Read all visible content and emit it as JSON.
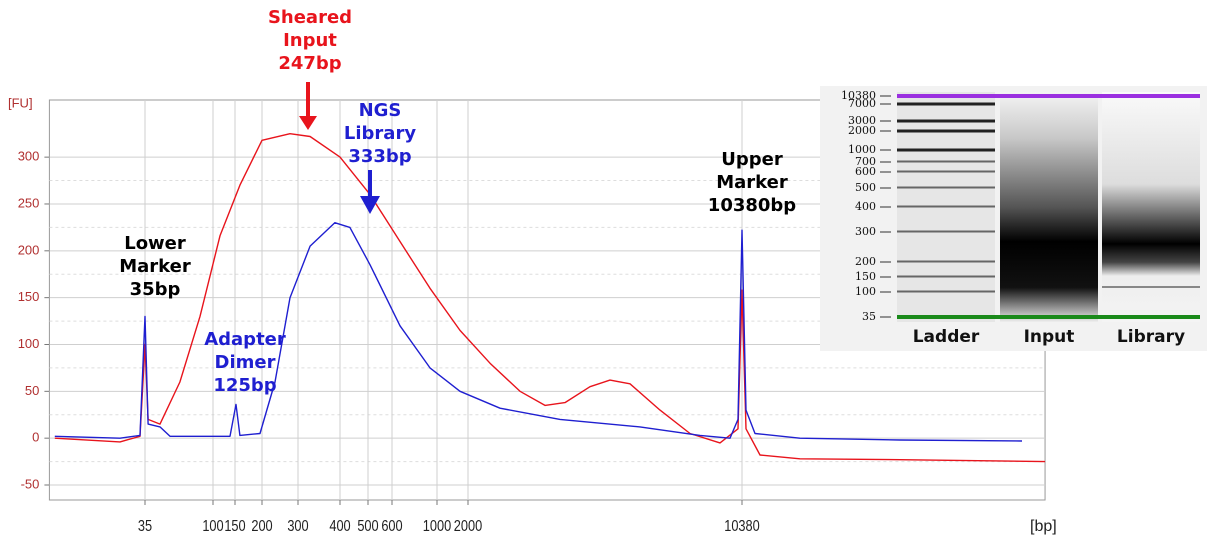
{
  "chart_data": {
    "type": "line",
    "y_unit": "[FU]",
    "x_unit": "[bp]",
    "xlim": [
      8,
      64150
    ],
    "xticks": [
      35,
      100,
      150,
      200,
      300,
      400,
      500,
      600,
      1000,
      2000,
      10380
    ],
    "ylim": [
      -66,
      361
    ],
    "yticks": [
      -50,
      0,
      50,
      100,
      150,
      200,
      250,
      300
    ],
    "grid": true,
    "series": [
      {
        "color": "#e8141c",
        "x": [
          8.7,
          23.8,
          32.4,
          35,
          36.7,
          44.1,
          60,
          81.8,
          113.8,
          158,
          200,
          274,
          326,
          400,
          508,
          657,
          924,
          1672,
          2283,
          2734,
          3177,
          3582,
          4163,
          4694,
          5296,
          6342,
          7594,
          9096,
          10136,
          10380,
          10632,
          11564,
          14700,
          26830,
          64150
        ],
        "values": [
          0,
          -4,
          2,
          100,
          20,
          15,
          60,
          130,
          216,
          270,
          318,
          325,
          322,
          300,
          260,
          210,
          160,
          115,
          80,
          50,
          35,
          38,
          55,
          62,
          58,
          30,
          5,
          -5,
          10,
          158,
          10,
          -18,
          -22,
          -23,
          -25
        ]
      },
      {
        "color": "#1f1fd0",
        "x": [
          8.7,
          23.8,
          32.4,
          35,
          36.7,
          44.1,
          51.5,
          136.8,
          151.6,
          158,
          195.7,
          231.5,
          274,
          326,
          386,
          433,
          508,
          657,
          924,
          1672,
          2424,
          3476,
          5624,
          8062,
          9660,
          10136,
          10380,
          10632,
          11225,
          14700,
          26830,
          55850
        ],
        "values": [
          2,
          0,
          3,
          130,
          15,
          12,
          2,
          2,
          36,
          3,
          5,
          60,
          150,
          205,
          230,
          225,
          185,
          120,
          75,
          50,
          32,
          20,
          12,
          3,
          0,
          20,
          222,
          30,
          5,
          0,
          -2,
          -3
        ]
      }
    ],
    "annotations": [
      {
        "lines": [
          "Sheared",
          "Input",
          "247bp"
        ],
        "color": "#e8141c"
      },
      {
        "lines": [
          "NGS",
          "Library",
          "333bp"
        ],
        "color": "#1f1fd0"
      },
      {
        "lines": [
          "Lower",
          "Marker",
          "35bp"
        ],
        "color": "#000000"
      },
      {
        "lines": [
          "Adapter",
          "Dimer",
          "125bp"
        ],
        "color": "#1f1fd0"
      },
      {
        "lines": [
          "Upper",
          "Marker",
          "10380bp"
        ],
        "color": "#000000"
      }
    ]
  },
  "gel": {
    "ladder_sizes": [
      10380,
      7000,
      3000,
      2000,
      1000,
      700,
      600,
      500,
      400,
      300,
      200,
      150,
      100,
      35
    ],
    "lanes": [
      "Ladder",
      "Input",
      "Library"
    ]
  }
}
